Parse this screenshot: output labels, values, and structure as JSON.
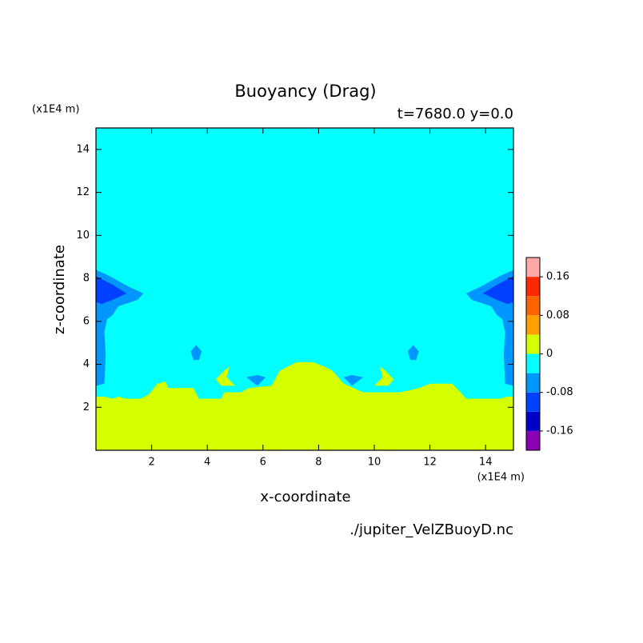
{
  "chart_data": {
    "type": "contour",
    "title": "Buoyancy (Drag)",
    "subtitle": "t=7680.0 y=0.0",
    "x_label": "x-coordinate",
    "y_label": "z-coordinate",
    "x_unit": "(x1E4 m)",
    "y_unit": "(x1E4 m)",
    "source": "./jupiter_VelZBuoyD.nc",
    "xlim": [
      0,
      15
    ],
    "ylim": [
      0,
      15
    ],
    "xticks": [
      2,
      4,
      6,
      8,
      10,
      12,
      14
    ],
    "yticks": [
      2,
      4,
      6,
      8,
      10,
      12,
      14
    ],
    "colorbar": {
      "levels": [
        -0.2,
        -0.16,
        -0.12,
        -0.08,
        -0.04,
        0,
        0.04,
        0.08,
        0.12,
        0.16,
        0.2
      ],
      "colors": [
        "#8a00b4",
        "#0000c8",
        "#0040ff",
        "#0096ff",
        "#00ffff",
        "#d4ff00",
        "#ffa000",
        "#ff6400",
        "#ff2800",
        "#ffa8a8"
      ],
      "ticks": [
        -0.16,
        -0.08,
        0,
        0.08,
        0.16
      ]
    },
    "regions": [
      {
        "level": -0.04,
        "points": [
          [
            0,
            0
          ],
          [
            0,
            15
          ],
          [
            15,
            15
          ],
          [
            15,
            0
          ]
        ]
      },
      {
        "level": 0,
        "points": [
          [
            0,
            0
          ],
          [
            0,
            2.5
          ],
          [
            0.3,
            2.5
          ],
          [
            0.6,
            2.4
          ],
          [
            0.8,
            2.5
          ],
          [
            1.1,
            2.4
          ],
          [
            1.6,
            2.4
          ],
          [
            1.9,
            2.6
          ],
          [
            2.2,
            3.1
          ],
          [
            2.5,
            3.2
          ],
          [
            2.6,
            2.9
          ],
          [
            2.9,
            2.9
          ],
          [
            3.5,
            2.9
          ],
          [
            3.7,
            2.4
          ],
          [
            4.5,
            2.4
          ],
          [
            4.6,
            2.7
          ],
          [
            5.2,
            2.7
          ],
          [
            5.5,
            2.9
          ],
          [
            6.3,
            3.0
          ],
          [
            6.6,
            3.7
          ],
          [
            6.9,
            3.9
          ],
          [
            7.2,
            4.1
          ],
          [
            7.8,
            4.1
          ],
          [
            8.2,
            3.9
          ],
          [
            8.5,
            3.7
          ],
          [
            8.9,
            3.1
          ],
          [
            9.6,
            2.7
          ],
          [
            10.9,
            2.7
          ],
          [
            11.3,
            2.8
          ],
          [
            11.6,
            2.9
          ],
          [
            12.0,
            3.1
          ],
          [
            12.8,
            3.1
          ],
          [
            13.1,
            2.7
          ],
          [
            13.3,
            2.4
          ],
          [
            14.5,
            2.4
          ],
          [
            14.8,
            2.5
          ],
          [
            15,
            2.5
          ],
          [
            15,
            0
          ]
        ]
      },
      {
        "level": 0,
        "points": [
          [
            4.3,
            3.3
          ],
          [
            4.6,
            3.7
          ],
          [
            4.8,
            3.9
          ],
          [
            4.7,
            3.4
          ],
          [
            5.0,
            3.0
          ],
          [
            4.5,
            3.0
          ]
        ]
      },
      {
        "level": 0,
        "points": [
          [
            10.7,
            3.3
          ],
          [
            10.4,
            3.7
          ],
          [
            10.2,
            3.9
          ],
          [
            10.3,
            3.4
          ],
          [
            10.0,
            3.0
          ],
          [
            10.5,
            3.0
          ]
        ]
      },
      {
        "level": -0.08,
        "points": [
          [
            0,
            8.4
          ],
          [
            0.5,
            8.1
          ],
          [
            1.2,
            7.6
          ],
          [
            1.7,
            7.3
          ],
          [
            1.5,
            7.0
          ],
          [
            0.8,
            6.7
          ],
          [
            0.6,
            6.3
          ],
          [
            0.4,
            6.1
          ],
          [
            0.3,
            5.5
          ],
          [
            0.35,
            4.5
          ],
          [
            0.3,
            3.1
          ],
          [
            0,
            3.0
          ]
        ]
      },
      {
        "level": -0.08,
        "points": [
          [
            15,
            8.4
          ],
          [
            14.5,
            8.1
          ],
          [
            13.8,
            7.6
          ],
          [
            13.3,
            7.3
          ],
          [
            13.5,
            7.0
          ],
          [
            14.2,
            6.7
          ],
          [
            14.4,
            6.3
          ],
          [
            14.6,
            6.1
          ],
          [
            14.7,
            5.5
          ],
          [
            14.65,
            4.5
          ],
          [
            14.7,
            3.1
          ],
          [
            15,
            3.0
          ]
        ]
      },
      {
        "level": -0.12,
        "points": [
          [
            0,
            8.1
          ],
          [
            0.6,
            7.7
          ],
          [
            1.1,
            7.3
          ],
          [
            0.6,
            7.0
          ],
          [
            0.2,
            6.8
          ],
          [
            0,
            6.9
          ]
        ]
      },
      {
        "level": -0.12,
        "points": [
          [
            15,
            8.1
          ],
          [
            14.4,
            7.7
          ],
          [
            13.9,
            7.3
          ],
          [
            14.4,
            7.0
          ],
          [
            14.8,
            6.8
          ],
          [
            15,
            6.9
          ]
        ]
      },
      {
        "level": -0.08,
        "points": [
          [
            3.4,
            4.6
          ],
          [
            3.6,
            4.9
          ],
          [
            3.8,
            4.6
          ],
          [
            3.7,
            4.2
          ],
          [
            3.5,
            4.2
          ]
        ]
      },
      {
        "level": -0.08,
        "points": [
          [
            11.6,
            4.6
          ],
          [
            11.4,
            4.9
          ],
          [
            11.2,
            4.6
          ],
          [
            11.3,
            4.2
          ],
          [
            11.5,
            4.2
          ]
        ]
      },
      {
        "level": -0.08,
        "points": [
          [
            5.4,
            3.4
          ],
          [
            5.8,
            3.5
          ],
          [
            6.1,
            3.4
          ],
          [
            5.8,
            3.0
          ]
        ]
      },
      {
        "level": -0.08,
        "points": [
          [
            9.6,
            3.4
          ],
          [
            9.2,
            3.5
          ],
          [
            8.9,
            3.4
          ],
          [
            9.2,
            3.0
          ]
        ]
      }
    ]
  }
}
